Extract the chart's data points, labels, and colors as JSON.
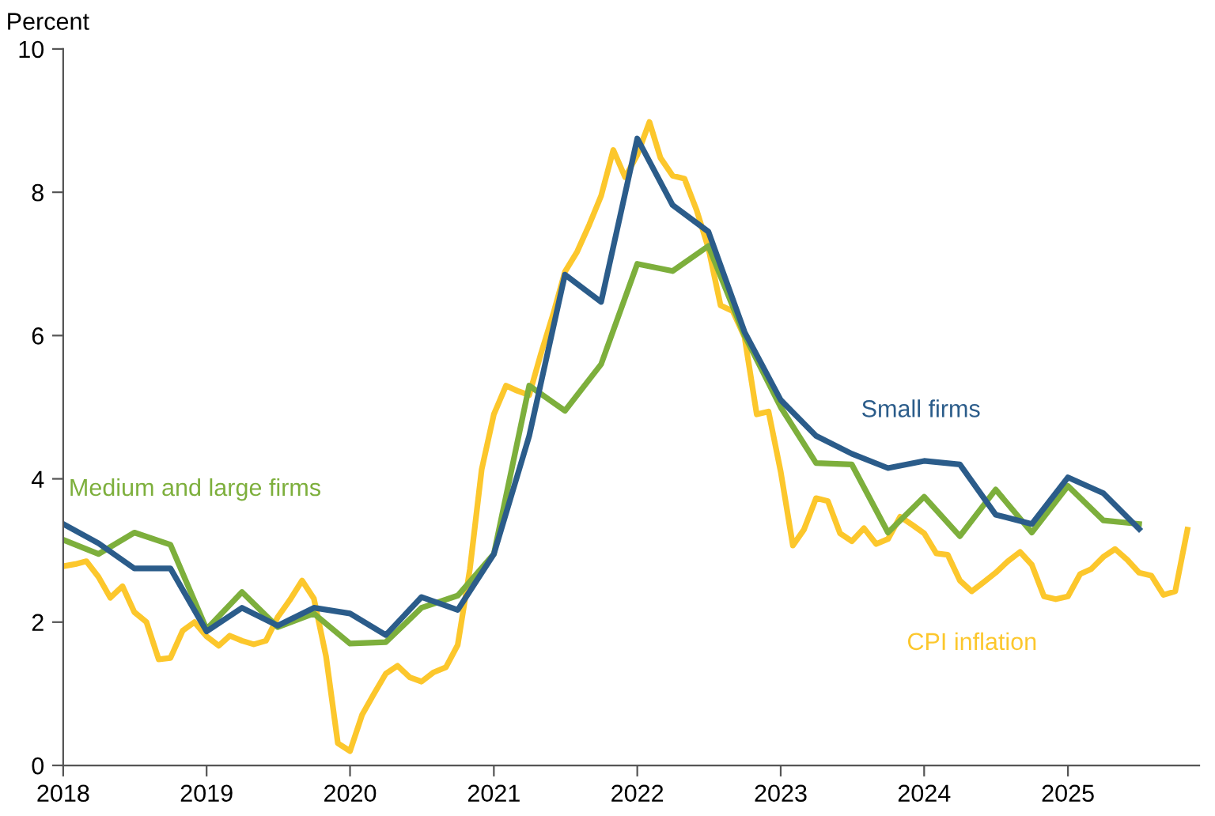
{
  "chart_data": {
    "type": "line",
    "ylabel": "Percent",
    "xlim": [
      "2018-01-01",
      "2025-12-01"
    ],
    "xticks": [
      {
        "value": "2018-01-01",
        "label": "2018"
      },
      {
        "value": "2019-01-01",
        "label": "2019"
      },
      {
        "value": "2020-01-01",
        "label": "2020"
      },
      {
        "value": "2021-01-01",
        "label": "2021"
      },
      {
        "value": "2022-01-01",
        "label": "2022"
      },
      {
        "value": "2023-01-01",
        "label": "2023"
      },
      {
        "value": "2024-01-01",
        "label": "2024"
      },
      {
        "value": "2025-01-01",
        "label": "2025"
      }
    ],
    "ylim": [
      0,
      10
    ],
    "yticks": [
      0,
      2,
      4,
      6,
      8,
      10
    ],
    "grid": false,
    "legend": false,
    "marker": "none",
    "line_style": "solid",
    "series": [
      {
        "name": "CPI inflation",
        "color": "#fcc72c",
        "x": [
          "2018-01",
          "2018-02",
          "2018-03",
          "2018-04",
          "2018-05",
          "2018-06",
          "2018-07",
          "2018-08",
          "2018-09",
          "2018-10",
          "2018-11",
          "2018-12",
          "2019-01",
          "2019-02",
          "2019-03",
          "2019-04",
          "2019-05",
          "2019-06",
          "2019-07",
          "2019-08",
          "2019-09",
          "2019-10",
          "2019-11",
          "2019-12",
          "2020-01",
          "2020-02",
          "2020-03",
          "2020-04",
          "2020-05",
          "2020-06",
          "2020-07",
          "2020-08",
          "2020-09",
          "2020-10",
          "2020-11",
          "2020-12",
          "2021-01",
          "2021-02",
          "2021-03",
          "2021-04",
          "2021-05",
          "2021-06",
          "2021-07",
          "2021-08",
          "2021-09",
          "2021-10",
          "2021-11",
          "2021-12",
          "2022-01",
          "2022-02",
          "2022-03",
          "2022-04",
          "2022-05",
          "2022-06",
          "2022-07",
          "2022-08",
          "2022-09",
          "2022-10",
          "2022-11",
          "2022-12",
          "2023-01",
          "2023-02",
          "2023-03",
          "2023-04",
          "2023-05",
          "2023-06",
          "2023-07",
          "2023-08",
          "2023-09",
          "2023-10",
          "2023-11",
          "2023-12",
          "2024-01",
          "2024-02",
          "2024-03",
          "2024-04",
          "2024-05",
          "2024-06",
          "2024-07",
          "2024-08",
          "2024-09",
          "2024-10",
          "2024-11",
          "2024-12",
          "2025-01",
          "2025-02",
          "2025-03",
          "2025-04",
          "2025-05",
          "2025-06",
          "2025-07",
          "2025-08",
          "2025-09",
          "2025-10",
          "2025-11"
        ],
        "values": [
          2.78,
          2.81,
          2.85,
          2.63,
          2.34,
          2.5,
          2.14,
          2.0,
          1.48,
          1.5,
          1.88,
          2.0,
          1.8,
          1.67,
          1.81,
          1.74,
          1.69,
          1.74,
          2.07,
          2.31,
          2.58,
          2.33,
          1.52,
          0.31,
          0.2,
          0.71,
          0.99,
          1.28,
          1.39,
          1.23,
          1.17,
          1.3,
          1.37,
          1.68,
          2.74,
          4.13,
          4.9,
          5.3,
          5.23,
          5.17,
          5.75,
          6.3,
          6.89,
          7.17,
          7.55,
          7.95,
          8.59,
          8.21,
          8.52,
          8.98,
          8.48,
          8.23,
          8.19,
          7.75,
          7.22,
          6.42,
          6.34,
          5.98,
          4.9,
          4.94,
          4.1,
          3.07,
          3.29,
          3.73,
          3.69,
          3.24,
          3.13,
          3.31,
          3.09,
          3.16,
          3.47,
          3.36,
          3.24,
          2.96,
          2.94,
          2.58,
          2.43,
          2.56,
          2.69,
          2.85,
          2.98,
          2.8,
          2.36,
          2.32,
          2.36,
          2.67,
          2.74,
          2.91,
          3.02,
          2.87,
          2.69,
          2.65,
          2.38,
          2.43,
          3.29
        ]
      },
      {
        "name": "Medium and large firms",
        "color": "#7daf3c",
        "x": [
          "2018-01",
          "2018-04",
          "2018-07",
          "2018-10",
          "2019-01",
          "2019-04",
          "2019-07",
          "2019-10",
          "2020-01",
          "2020-04",
          "2020-07",
          "2020-10",
          "2021-01",
          "2021-04",
          "2021-07",
          "2021-10",
          "2022-01",
          "2022-04",
          "2022-07",
          "2022-10",
          "2023-01",
          "2023-04",
          "2023-07",
          "2023-10",
          "2024-01",
          "2024-04",
          "2024-07",
          "2024-10",
          "2025-01",
          "2025-04",
          "2025-07"
        ],
        "values": [
          3.15,
          2.95,
          3.25,
          3.08,
          1.9,
          2.42,
          1.93,
          2.12,
          1.7,
          1.72,
          2.2,
          2.37,
          2.95,
          5.3,
          4.95,
          5.6,
          7.0,
          6.9,
          7.25,
          6.0,
          5.0,
          4.22,
          4.2,
          3.25,
          3.75,
          3.2,
          3.85,
          3.25,
          3.9,
          3.42,
          3.37
        ]
      },
      {
        "name": "Small firms",
        "color": "#2b5c8a",
        "x": [
          "2018-01",
          "2018-04",
          "2018-07",
          "2018-10",
          "2019-01",
          "2019-04",
          "2019-07",
          "2019-10",
          "2020-01",
          "2020-04",
          "2020-07",
          "2020-10",
          "2021-01",
          "2021-04",
          "2021-07",
          "2021-10",
          "2022-01",
          "2022-04",
          "2022-07",
          "2022-10",
          "2023-01",
          "2023-04",
          "2023-07",
          "2023-10",
          "2024-01",
          "2024-04",
          "2024-07",
          "2024-10",
          "2025-01",
          "2025-04",
          "2025-07"
        ],
        "values": [
          3.37,
          3.1,
          2.75,
          2.75,
          1.87,
          2.2,
          1.95,
          2.2,
          2.12,
          1.82,
          2.35,
          2.17,
          2.95,
          4.6,
          6.85,
          6.47,
          8.75,
          7.82,
          7.45,
          6.05,
          5.1,
          4.6,
          4.35,
          4.15,
          4.25,
          4.2,
          3.5,
          3.37,
          4.02,
          3.8,
          3.3
        ]
      }
    ]
  }
}
